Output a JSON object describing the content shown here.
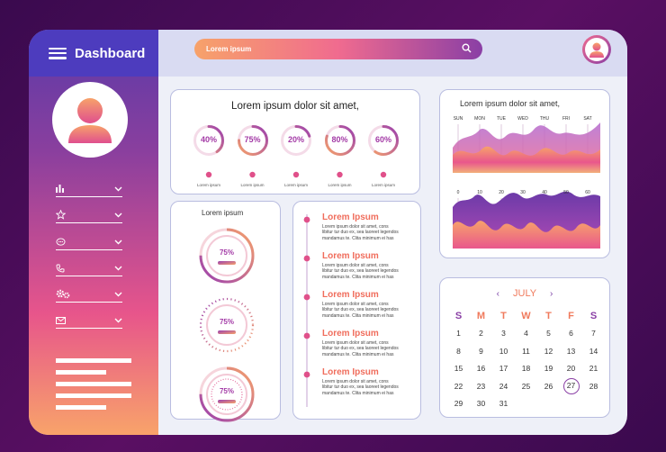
{
  "sidebar": {
    "title": "Dashboard",
    "menu": [
      {
        "icon": "bar-chart-icon"
      },
      {
        "icon": "star-icon"
      },
      {
        "icon": "chat-icon"
      },
      {
        "icon": "phone-icon"
      },
      {
        "icon": "gears-icon"
      },
      {
        "icon": "mail-icon"
      }
    ]
  },
  "topbar": {
    "search_placeholder": "Lorem ipsum"
  },
  "progress_card": {
    "title": "Lorem ipsum dolor sit amet,",
    "items": [
      {
        "percent": 40,
        "label": "40%",
        "caption": "Lorem ipsum"
      },
      {
        "percent": 75,
        "label": "75%",
        "caption": "Lorem ipsum"
      },
      {
        "percent": 20,
        "label": "20%",
        "caption": "Lorem ipsum"
      },
      {
        "percent": 80,
        "label": "80%",
        "caption": "Lorem ipsum"
      },
      {
        "percent": 60,
        "label": "60%",
        "caption": "Lorem ipsum"
      }
    ]
  },
  "gauge_card": {
    "title": "Lorem ipsum",
    "gauges": [
      {
        "percent": 75,
        "label": "75%"
      },
      {
        "percent": 75,
        "label": "75%"
      },
      {
        "percent": 75,
        "label": "75%"
      }
    ]
  },
  "list_card": {
    "items": [
      {
        "title": "Lorem Ipsum",
        "lines": [
          "Lorem ipsum dolor sit amet, cons",
          "libitur tur duo ex, sea laoreet legendos",
          "mandamus te. Clita minimum ei has"
        ]
      },
      {
        "title": "Lorem Ipsum",
        "lines": [
          "Lorem ipsum dolor sit amet, cons",
          "libitur tur duo ex, sea laoreet legendos",
          "mandamus te. Clita minimum ei has"
        ]
      },
      {
        "title": "Lorem Ipsum",
        "lines": [
          "Lorem ipsum dolor sit amet, cons",
          "libitur tur duo ex, sea laoreet legendos",
          "mandamus te. Clita minimum ei has"
        ]
      },
      {
        "title": "Lorem Ipsum",
        "lines": [
          "Lorem ipsum dolor sit amet, cons",
          "libitur tur duo ex, sea laoreet legendos",
          "mandamus te. Clita minimum ei has"
        ]
      },
      {
        "title": "Lorem Ipsum",
        "lines": [
          "Lorem ipsum dolor sit amet, cons",
          "libitur tur duo ex, sea laoreet legendos",
          "mandamus te. Clita minimum ei has"
        ]
      }
    ]
  },
  "wave_card": {
    "title": "Lorem ipsum dolor sit amet,",
    "days": [
      "SUN",
      "MON",
      "TUE",
      "WED",
      "THU",
      "FRI",
      "SAT"
    ],
    "ticks": [
      "0",
      "10",
      "20",
      "30",
      "40",
      "50",
      "60"
    ]
  },
  "calendar": {
    "month": "JULY",
    "weekdays": [
      "S",
      "M",
      "T",
      "W",
      "T",
      "F",
      "S"
    ],
    "weeks": [
      [
        "1",
        "2",
        "3",
        "4",
        "5",
        "6",
        "7"
      ],
      [
        "8",
        "9",
        "10",
        "11",
        "12",
        "13",
        "14"
      ],
      [
        "15",
        "16",
        "17",
        "18",
        "19",
        "20",
        "21"
      ],
      [
        "22",
        "23",
        "24",
        "25",
        "26",
        "27",
        "28"
      ],
      [
        "29",
        "30",
        "31",
        "",
        "",
        "",
        ""
      ]
    ],
    "selected": "27"
  },
  "colors": {
    "accent": "#a33aa6",
    "orange": "#f06d5c",
    "pink": "#f06b8f",
    "purple": "#8a3fa5"
  }
}
